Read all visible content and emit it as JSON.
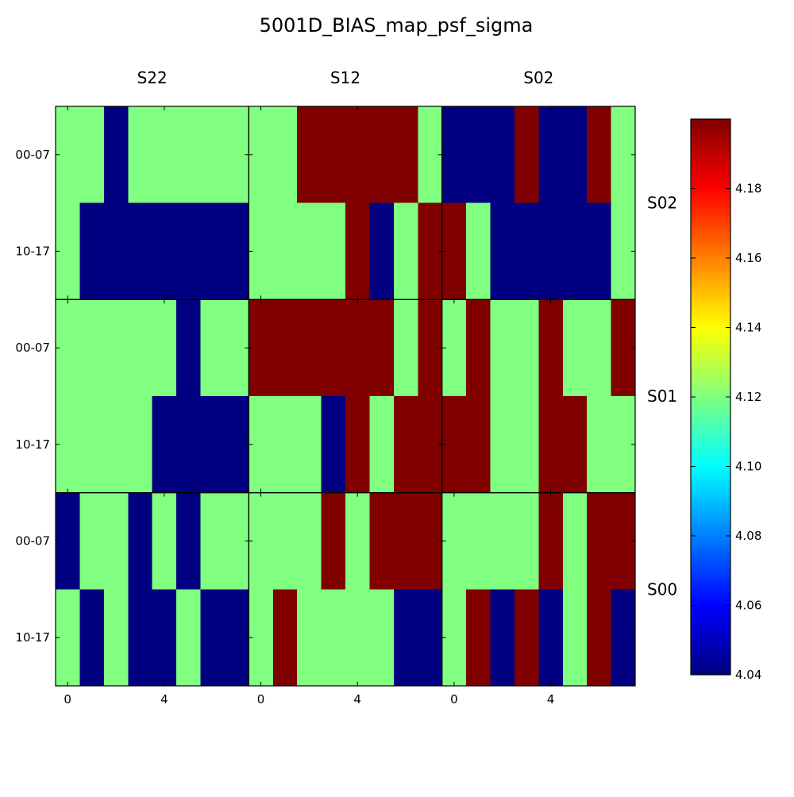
{
  "chart_data": {
    "type": "heatmap",
    "title": "5001D_BIAS_map_psf_sigma",
    "xlabel": "",
    "ylabel": "",
    "column_labels": [
      "S22",
      "S12",
      "S02"
    ],
    "row_labels": [
      "S02",
      "S01",
      "S00"
    ],
    "x_tick_labels": [
      "0",
      "4"
    ],
    "x_tick_values": [
      0,
      4
    ],
    "y_tick_labels": [
      "00-07",
      "10-17"
    ],
    "grid": false,
    "colorbar": {
      "min": 4.04,
      "max": 4.2,
      "colormap": "jet",
      "tick_values": [
        4.04,
        4.06,
        4.08,
        4.1,
        4.12,
        4.14,
        4.16,
        4.18
      ],
      "tick_labels": [
        "4.04",
        "4.06",
        "4.08",
        "4.10",
        "4.12",
        "4.14",
        "4.16",
        "4.18"
      ],
      "placement": "right"
    },
    "panels": [
      {
        "row": "S02",
        "col": "S22",
        "values": [
          [
            4.12,
            4.12,
            4.04,
            4.12,
            4.12,
            4.12,
            4.12,
            4.12
          ],
          [
            4.12,
            4.04,
            4.04,
            4.04,
            4.04,
            4.04,
            4.04,
            4.04
          ]
        ]
      },
      {
        "row": "S02",
        "col": "S12",
        "values": [
          [
            4.12,
            4.12,
            4.2,
            4.2,
            4.2,
            4.2,
            4.2,
            4.12
          ],
          [
            4.12,
            4.12,
            4.12,
            4.12,
            4.2,
            4.04,
            4.12,
            4.2
          ]
        ]
      },
      {
        "row": "S02",
        "col": "S02",
        "values": [
          [
            4.04,
            4.04,
            4.04,
            4.2,
            4.04,
            4.04,
            4.2,
            4.12
          ],
          [
            4.2,
            4.12,
            4.04,
            4.04,
            4.04,
            4.04,
            4.04,
            4.12
          ]
        ]
      },
      {
        "row": "S01",
        "col": "S22",
        "values": [
          [
            4.12,
            4.12,
            4.12,
            4.12,
            4.12,
            4.04,
            4.12,
            4.12
          ],
          [
            4.12,
            4.12,
            4.12,
            4.12,
            4.04,
            4.04,
            4.04,
            4.04
          ]
        ]
      },
      {
        "row": "S01",
        "col": "S12",
        "values": [
          [
            4.2,
            4.2,
            4.2,
            4.2,
            4.2,
            4.2,
            4.12,
            4.2
          ],
          [
            4.12,
            4.12,
            4.12,
            4.04,
            4.2,
            4.12,
            4.2,
            4.2
          ]
        ]
      },
      {
        "row": "S01",
        "col": "S02",
        "values": [
          [
            4.12,
            4.2,
            4.12,
            4.12,
            4.2,
            4.12,
            4.12,
            4.2
          ],
          [
            4.2,
            4.2,
            4.12,
            4.12,
            4.2,
            4.2,
            4.12,
            4.12
          ]
        ]
      },
      {
        "row": "S00",
        "col": "S22",
        "values": [
          [
            4.04,
            4.12,
            4.12,
            4.04,
            4.12,
            4.04,
            4.12,
            4.12
          ],
          [
            4.12,
            4.04,
            4.12,
            4.04,
            4.04,
            4.12,
            4.04,
            4.04
          ]
        ]
      },
      {
        "row": "S00",
        "col": "S12",
        "values": [
          [
            4.12,
            4.12,
            4.12,
            4.2,
            4.12,
            4.2,
            4.2,
            4.2
          ],
          [
            4.12,
            4.2,
            4.12,
            4.12,
            4.12,
            4.12,
            4.04,
            4.04
          ]
        ]
      },
      {
        "row": "S00",
        "col": "S02",
        "values": [
          [
            4.12,
            4.12,
            4.12,
            4.12,
            4.2,
            4.12,
            4.2,
            4.2
          ],
          [
            4.12,
            4.2,
            4.04,
            4.2,
            4.04,
            4.12,
            4.2,
            4.04
          ]
        ]
      }
    ]
  }
}
